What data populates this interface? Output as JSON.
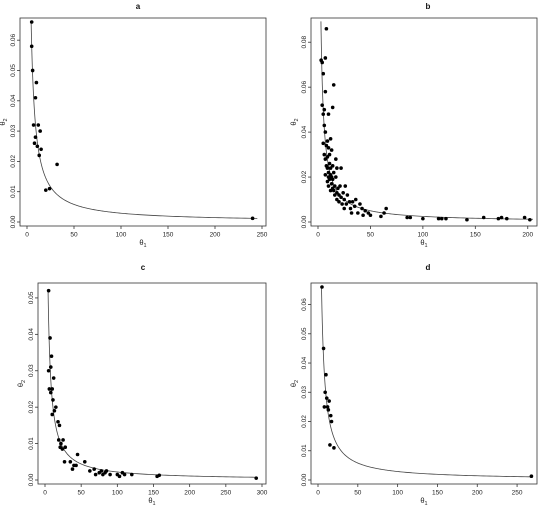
{
  "chart_data": [
    {
      "type": "scatter",
      "title": "a",
      "xlabel_base": "θ",
      "xlabel_sub": "1",
      "ylabel_base": "θ",
      "ylabel_sub": "2",
      "xlim": [
        0,
        250
      ],
      "ylim": [
        0,
        0.066
      ],
      "xticks": [
        0,
        50,
        100,
        150,
        200,
        250
      ],
      "yticks": [
        0.0,
        0.01,
        0.02,
        0.03,
        0.04,
        0.05,
        0.06
      ],
      "xtick_labels": [
        "0",
        "50",
        "100",
        "150",
        "200",
        "250"
      ],
      "ytick_labels": [
        "0.00",
        "0.01",
        "0.02",
        "0.03",
        "0.04",
        "0.05",
        "0.06"
      ],
      "curve_k": 0.29,
      "curve_x": [
        4.4,
        245
      ],
      "points": [
        [
          5,
          0.066
        ],
        [
          5,
          0.058
        ],
        [
          6,
          0.05
        ],
        [
          7,
          0.032
        ],
        [
          8,
          0.026
        ],
        [
          9,
          0.041
        ],
        [
          9,
          0.028
        ],
        [
          10,
          0.046
        ],
        [
          11,
          0.025
        ],
        [
          12,
          0.032
        ],
        [
          13,
          0.022
        ],
        [
          14,
          0.03
        ],
        [
          15,
          0.024
        ],
        [
          20,
          0.0105
        ],
        [
          24,
          0.011
        ],
        [
          32,
          0.019
        ],
        [
          240,
          0.0012
        ]
      ]
    },
    {
      "type": "scatter",
      "title": "b",
      "xlabel_base": "θ",
      "xlabel_sub": "1",
      "ylabel_base": "θ",
      "ylabel_sub": "2",
      "xlim": [
        0,
        205
      ],
      "ylim": [
        0,
        0.089
      ],
      "xticks": [
        0,
        50,
        100,
        150,
        200
      ],
      "yticks": [
        0.0,
        0.02,
        0.04,
        0.06,
        0.08
      ],
      "xtick_labels": [
        "0",
        "50",
        "100",
        "150",
        "200"
      ],
      "ytick_labels": [
        "0.00",
        "0.02",
        "0.04",
        "0.06",
        "0.08"
      ],
      "curve_k": 0.25,
      "curve_x": [
        2.8,
        205
      ],
      "points": [
        [
          3,
          0.072
        ],
        [
          4,
          0.052
        ],
        [
          4,
          0.071
        ],
        [
          5,
          0.035
        ],
        [
          5,
          0.048
        ],
        [
          5,
          0.066
        ],
        [
          6,
          0.03
        ],
        [
          6,
          0.043
        ],
        [
          6,
          0.05
        ],
        [
          7,
          0.021
        ],
        [
          7,
          0.028
        ],
        [
          7,
          0.04
        ],
        [
          7,
          0.058
        ],
        [
          7,
          0.073
        ],
        [
          8,
          0.025
        ],
        [
          8,
          0.034
        ],
        [
          8,
          0.086
        ],
        [
          9,
          0.018
        ],
        [
          9,
          0.024
        ],
        [
          9,
          0.029
        ],
        [
          9,
          0.036
        ],
        [
          10,
          0.016
        ],
        [
          10,
          0.02
        ],
        [
          10,
          0.022
        ],
        [
          10,
          0.033
        ],
        [
          10,
          0.048
        ],
        [
          11,
          0.019
        ],
        [
          11,
          0.026
        ],
        [
          11,
          0.03
        ],
        [
          12,
          0.014
        ],
        [
          12,
          0.021
        ],
        [
          12,
          0.024
        ],
        [
          12,
          0.037
        ],
        [
          13,
          0.017
        ],
        [
          13,
          0.02
        ],
        [
          13,
          0.032
        ],
        [
          14,
          0.015
        ],
        [
          14,
          0.019
        ],
        [
          14,
          0.025
        ],
        [
          14,
          0.051
        ],
        [
          15,
          0.014
        ],
        [
          15,
          0.022
        ],
        [
          15,
          0.061
        ],
        [
          16,
          0.012
        ],
        [
          16,
          0.016
        ],
        [
          17,
          0.02
        ],
        [
          17,
          0.028
        ],
        [
          18,
          0.01
        ],
        [
          18,
          0.013
        ],
        [
          18,
          0.024
        ],
        [
          19,
          0.015
        ],
        [
          20,
          0.009
        ],
        [
          20,
          0.012
        ],
        [
          21,
          0.016
        ],
        [
          22,
          0.011
        ],
        [
          22,
          0.024
        ],
        [
          23,
          0.008
        ],
        [
          24,
          0.013
        ],
        [
          25,
          0.006
        ],
        [
          25,
          0.01
        ],
        [
          26,
          0.016
        ],
        [
          27,
          0.008
        ],
        [
          28,
          0.012
        ],
        [
          30,
          0.009
        ],
        [
          31,
          0.006
        ],
        [
          32,
          0.004
        ],
        [
          33,
          0.009
        ],
        [
          35,
          0.007
        ],
        [
          36,
          0.01
        ],
        [
          38,
          0.004
        ],
        [
          40,
          0.008
        ],
        [
          42,
          0.006
        ],
        [
          43,
          0.003
        ],
        [
          45,
          0.005
        ],
        [
          48,
          0.004
        ],
        [
          50,
          0.003
        ],
        [
          60,
          0.0025
        ],
        [
          63,
          0.004
        ],
        [
          65,
          0.006
        ],
        [
          85,
          0.002
        ],
        [
          88,
          0.002
        ],
        [
          100,
          0.0015
        ],
        [
          115,
          0.0015
        ],
        [
          118,
          0.0015
        ],
        [
          122,
          0.0015
        ],
        [
          142,
          0.001
        ],
        [
          158,
          0.002
        ],
        [
          172,
          0.0015
        ],
        [
          175,
          0.002
        ],
        [
          180,
          0.0015
        ],
        [
          197,
          0.002
        ],
        [
          202,
          0.001
        ]
      ]
    },
    {
      "type": "scatter",
      "title": "c",
      "xlabel_base": "θ",
      "xlabel_sub": "1",
      "ylabel_base": "θ",
      "ylabel_sub": "2",
      "xlim": [
        0,
        300
      ],
      "ylim": [
        0,
        0.053
      ],
      "xticks": [
        0,
        50,
        100,
        150,
        200,
        250,
        300
      ],
      "yticks": [
        0.0,
        0.01,
        0.02,
        0.03,
        0.04,
        0.05
      ],
      "xtick_labels": [
        "0",
        "50",
        "100",
        "150",
        "200",
        "250",
        "300"
      ],
      "ytick_labels": [
        "0.00",
        "0.01",
        "0.02",
        "0.03",
        "0.04",
        "0.05"
      ],
      "curve_k": 0.22,
      "curve_x": [
        4.2,
        292
      ],
      "points": [
        [
          5,
          0.052
        ],
        [
          5,
          0.03
        ],
        [
          6,
          0.025
        ],
        [
          7,
          0.039
        ],
        [
          8,
          0.031
        ],
        [
          8,
          0.024
        ],
        [
          9,
          0.034
        ],
        [
          10,
          0.025
        ],
        [
          10,
          0.018
        ],
        [
          11,
          0.022
        ],
        [
          12,
          0.028
        ],
        [
          13,
          0.019
        ],
        [
          15,
          0.02
        ],
        [
          18,
          0.016
        ],
        [
          19,
          0.011
        ],
        [
          20,
          0.015
        ],
        [
          21,
          0.009
        ],
        [
          22,
          0.01
        ],
        [
          24,
          0.0085
        ],
        [
          25,
          0.011
        ],
        [
          27,
          0.005
        ],
        [
          28,
          0.009
        ],
        [
          35,
          0.005
        ],
        [
          38,
          0.003
        ],
        [
          40,
          0.004
        ],
        [
          43,
          0.004
        ],
        [
          45,
          0.007
        ],
        [
          55,
          0.005
        ],
        [
          62,
          0.0025
        ],
        [
          68,
          0.003
        ],
        [
          70,
          0.0015
        ],
        [
          75,
          0.002
        ],
        [
          78,
          0.0025
        ],
        [
          80,
          0.0015
        ],
        [
          83,
          0.002
        ],
        [
          85,
          0.0025
        ],
        [
          90,
          0.0015
        ],
        [
          100,
          0.0015
        ],
        [
          103,
          0.001
        ],
        [
          107,
          0.002
        ],
        [
          110,
          0.0015
        ],
        [
          120,
          0.0015
        ],
        [
          155,
          0.001
        ],
        [
          158,
          0.0013
        ],
        [
          292,
          0.0005
        ]
      ]
    },
    {
      "type": "scatter",
      "title": "d",
      "xlabel_base": "θ",
      "xlabel_sub": "1",
      "ylabel_base": "θ",
      "ylabel_sub": "2",
      "xlim": [
        0,
        270
      ],
      "ylim": [
        0,
        0.066
      ],
      "xticks": [
        0,
        50,
        100,
        150,
        200,
        250
      ],
      "yticks": [
        0.0,
        0.01,
        0.02,
        0.03,
        0.04,
        0.05,
        0.06
      ],
      "xtick_labels": [
        "0",
        "50",
        "100",
        "150",
        "200",
        "250"
      ],
      "ytick_labels": [
        "0.00",
        "0.01",
        "0.02",
        "0.03",
        "0.04",
        "0.05",
        "0.06"
      ],
      "curve_k": 0.29,
      "curve_x": [
        4.4,
        270
      ],
      "points": [
        [
          5,
          0.066
        ],
        [
          7,
          0.045
        ],
        [
          8,
          0.025
        ],
        [
          9,
          0.03
        ],
        [
          10,
          0.036
        ],
        [
          11,
          0.028
        ],
        [
          12,
          0.025
        ],
        [
          13,
          0.024
        ],
        [
          14,
          0.027
        ],
        [
          15,
          0.012
        ],
        [
          16,
          0.022
        ],
        [
          17,
          0.02
        ],
        [
          20,
          0.011
        ],
        [
          268,
          0.0013
        ]
      ]
    }
  ]
}
